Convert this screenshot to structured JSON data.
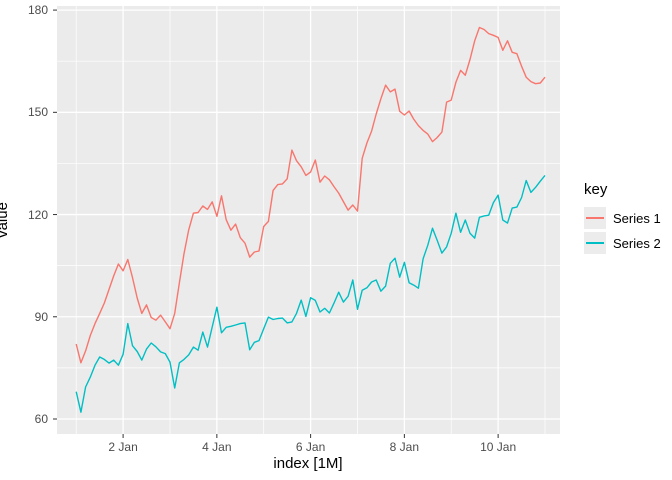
{
  "chart_data": {
    "type": "line",
    "title": "",
    "xlabel": "index [1M]",
    "ylabel": "value",
    "legend_title": "key",
    "legend_position": "right",
    "grid": {
      "major": true,
      "minor": true,
      "panel_bg": "#ebebeb",
      "grid_color": "#ffffff"
    },
    "x_axis": {
      "title": "index [1M]",
      "domain": [
        0.59,
        11.32
      ],
      "tick_values": [
        2,
        4,
        6,
        8,
        10
      ],
      "tick_labels": [
        "2 Jan",
        "4 Jan",
        "6 Jan",
        "8 Jan",
        "10 Jan"
      ],
      "minor_tick_values": [
        1,
        3,
        5,
        7,
        9,
        11
      ],
      "unit": "day of January"
    },
    "y_axis": {
      "title": "value",
      "domain": [
        55.6,
        181.2
      ],
      "tick_values": [
        60,
        90,
        120,
        150,
        180
      ],
      "tick_labels": [
        "60",
        "90",
        "120",
        "150",
        "180"
      ],
      "minor_tick_values": [
        75,
        105,
        135,
        165
      ]
    },
    "x": [
      1.0,
      1.1,
      1.2,
      1.3,
      1.4,
      1.5,
      1.6,
      1.7,
      1.8,
      1.9,
      2.0,
      2.1,
      2.2,
      2.3,
      2.4,
      2.5,
      2.6,
      2.7,
      2.8,
      2.9,
      3.0,
      3.1,
      3.2,
      3.3,
      3.4,
      3.5,
      3.6,
      3.7,
      3.8,
      3.9,
      4.0,
      4.1,
      4.2,
      4.3,
      4.4,
      4.5,
      4.6,
      4.7,
      4.8,
      4.9,
      5.0,
      5.1,
      5.2,
      5.3,
      5.4,
      5.5,
      5.6,
      5.7,
      5.8,
      5.9,
      6.0,
      6.1,
      6.2,
      6.3,
      6.4,
      6.5,
      6.6,
      6.7,
      6.8,
      6.9,
      7.0,
      7.1,
      7.2,
      7.3,
      7.4,
      7.5,
      7.6,
      7.7,
      7.8,
      7.9,
      8.0,
      8.1,
      8.2,
      8.3,
      8.4,
      8.5,
      8.6,
      8.7,
      8.8,
      8.9,
      9.0,
      9.1,
      9.2,
      9.3,
      9.4,
      9.5,
      9.6,
      9.7,
      9.8,
      9.9,
      10.0,
      10.1,
      10.2,
      10.3,
      10.4,
      10.5,
      10.6,
      10.7,
      10.8,
      10.9,
      11.0
    ],
    "series": [
      {
        "name": "Series 1",
        "color": "#F8766D",
        "values": [
          82,
          76.5,
          80,
          84.5,
          88,
          91,
          94,
          98,
          102,
          105.5,
          103.5,
          106.8,
          101.5,
          95.5,
          91,
          93.5,
          89.8,
          89,
          90.5,
          88.5,
          86.5,
          91,
          100,
          108.5,
          115.5,
          120.4,
          120.6,
          122.5,
          121.5,
          123.7,
          119.5,
          125.5,
          118.5,
          115.4,
          117.2,
          113.2,
          111.6,
          107.5,
          109,
          109.3,
          116.5,
          118,
          127.1,
          128.8,
          129,
          130.5,
          138.9,
          135.8,
          134,
          131.5,
          132.5,
          136,
          129.5,
          131.3,
          130.2,
          128.2,
          126.3,
          123.8,
          121.3,
          122.8,
          121,
          136.5,
          141,
          144.5,
          149.5,
          154,
          158,
          156,
          156.8,
          150.3,
          149.2,
          150.4,
          148,
          146.1,
          144.7,
          143.6,
          141.4,
          142.6,
          144.2,
          153,
          153.6,
          158.8,
          162.3,
          160.9,
          165.5,
          171,
          174.9,
          174.3,
          173.1,
          172.6,
          172,
          168.2,
          171,
          167.6,
          167.2,
          163.5,
          160.3,
          159,
          158.4,
          158.6,
          160.3
        ]
      },
      {
        "name": "Series 2",
        "color": "#00BFC4",
        "values": [
          68,
          62,
          69.4,
          72.3,
          75.8,
          78.2,
          77.5,
          76.4,
          77.3,
          75.8,
          79,
          88,
          81.5,
          79.8,
          77.3,
          80.5,
          82.3,
          81.2,
          79.7,
          79.2,
          76.7,
          69.1,
          76.5,
          77.5,
          78.8,
          81.1,
          80.2,
          85.5,
          81.1,
          87,
          92.8,
          85.3,
          86.9,
          87.2,
          87.6,
          88,
          88.2,
          80.3,
          82.5,
          83,
          86.5,
          89.9,
          89.2,
          89.5,
          89.6,
          88.2,
          88.5,
          91,
          94.9,
          90.1,
          95.6,
          94.8,
          91.4,
          92.5,
          91.1,
          94,
          97.2,
          94.3,
          96,
          100.8,
          92.2,
          97.8,
          98.5,
          100.2,
          100.8,
          97.5,
          99,
          105.7,
          107.2,
          101.6,
          106,
          100,
          99.3,
          98.4,
          107,
          111,
          116,
          112.4,
          108.7,
          110.5,
          114.5,
          120.4,
          114.8,
          118.4,
          114.5,
          113.1,
          119.2,
          119.6,
          119.8,
          123.5,
          125.7,
          118.4,
          117.5,
          121.9,
          122.2,
          125,
          130,
          126.5,
          128,
          129.8,
          131.5
        ]
      }
    ]
  },
  "legend": {
    "title": "key",
    "items": [
      {
        "label": "Series 1",
        "color": "#F8766D"
      },
      {
        "label": "Series 2",
        "color": "#00BFC4"
      }
    ]
  },
  "colors": {
    "panel_bg": "#ebebeb",
    "gridline": "#ffffff",
    "axis_text": "#4d4d4d",
    "title_text": "#000000",
    "tick_mark": "#333333",
    "legend_key_bg": "#ececec",
    "series1": "#F8766D",
    "series2": "#00BFC4"
  }
}
